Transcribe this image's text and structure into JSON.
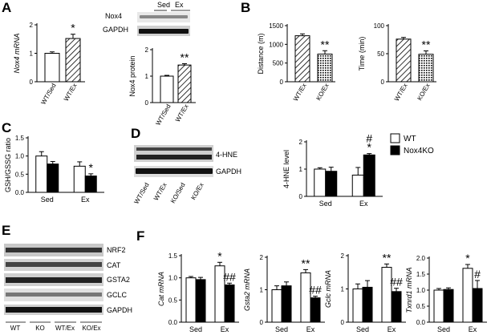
{
  "panel_letters": {
    "A": "A",
    "B": "B",
    "C": "C",
    "D": "D",
    "E": "E",
    "F": "F"
  },
  "legend": {
    "wt": "WT",
    "ko": "Nox4KO"
  },
  "blots": {
    "a_header_sed": "Sed",
    "a_header_ex": "Ex",
    "a_nox4": "Nox4",
    "a_gapdh": "GAPDH",
    "d_hne": "4-HNE",
    "d_gapdh": "GAPDH",
    "d_lanes": [
      "WT/Sed",
      "WT/Ex",
      "KO/Sed",
      "KO/Ex"
    ],
    "e_rows": [
      "NRF2",
      "CAT",
      "GSTA2",
      "GCLC",
      "GAPDH"
    ],
    "e_lanes": [
      "WT",
      "KO",
      "WT/Ex",
      "KO/Ex"
    ]
  },
  "chart_data": [
    {
      "id": "A1",
      "type": "bar",
      "ylabel": "Nox4 mRNA",
      "ylim": [
        0,
        2
      ],
      "yticks": [
        0,
        1,
        2
      ],
      "categories": [
        "WT/Sed",
        "WT/Ex"
      ],
      "values": [
        1.0,
        1.52
      ],
      "errors": [
        0.05,
        0.15
      ],
      "fills": [
        "white",
        "hatch"
      ],
      "annotations": [
        "",
        "*"
      ]
    },
    {
      "id": "A2",
      "type": "bar",
      "ylabel": "Nox4 protein",
      "ylim": [
        0,
        2
      ],
      "yticks": [
        0,
        1,
        2
      ],
      "categories": [
        "WT/Sed",
        "WT/Ex"
      ],
      "values": [
        1.0,
        1.42
      ],
      "errors": [
        0.03,
        0.05
      ],
      "fills": [
        "white",
        "hatch"
      ],
      "annotations": [
        "",
        "**"
      ]
    },
    {
      "id": "B1",
      "type": "bar",
      "ylabel": "Distance (m)",
      "ylim": [
        0,
        1500
      ],
      "yticks": [
        0,
        500,
        1000,
        1500
      ],
      "categories": [
        "WT/Ex",
        "KO/Ex"
      ],
      "values": [
        1230,
        740
      ],
      "errors": [
        50,
        90
      ],
      "fills": [
        "hatch",
        "dots"
      ],
      "annotations": [
        "",
        "**"
      ]
    },
    {
      "id": "B2",
      "type": "bar",
      "ylabel": "Time (min)",
      "ylim": [
        0,
        100
      ],
      "yticks": [
        0,
        50,
        100
      ],
      "categories": [
        "WT/Ex",
        "KO/Ex"
      ],
      "values": [
        76,
        49
      ],
      "errors": [
        3,
        6
      ],
      "fills": [
        "hatch",
        "dots"
      ],
      "annotations": [
        "",
        "**"
      ]
    },
    {
      "id": "C",
      "type": "bar",
      "ylabel": "GSH/GSSG ratio",
      "ylim": [
        0,
        1.5
      ],
      "yticks": [
        0,
        0.5,
        1.0,
        1.5
      ],
      "categories": [
        "Sed",
        "Ex"
      ],
      "series": [
        {
          "name": "WT",
          "values": [
            1.0,
            0.72
          ],
          "errors": [
            0.12,
            0.12
          ],
          "fill": "white",
          "annotations": [
            "",
            ""
          ]
        },
        {
          "name": "Nox4KO",
          "values": [
            0.78,
            0.45
          ],
          "errors": [
            0.07,
            0.06
          ],
          "fill": "black",
          "annotations": [
            "",
            "*"
          ]
        }
      ]
    },
    {
      "id": "D",
      "type": "bar",
      "ylabel": "4-HNE level",
      "ylim": [
        0,
        2
      ],
      "yticks": [
        0,
        1,
        2
      ],
      "categories": [
        "Sed",
        "Ex"
      ],
      "series": [
        {
          "name": "WT",
          "values": [
            1.0,
            0.78
          ],
          "errors": [
            0.05,
            0.28
          ],
          "fill": "white",
          "annotations": [
            "",
            ""
          ]
        },
        {
          "name": "Nox4KO",
          "values": [
            0.92,
            1.52
          ],
          "errors": [
            0.15,
            0.05
          ],
          "fill": "black",
          "annotations": [
            "",
            "# *"
          ]
        }
      ]
    },
    {
      "id": "F1",
      "type": "bar",
      "ylabel": "Cat mRNA",
      "ylim": [
        0,
        1.5
      ],
      "yticks": [
        0,
        0.5,
        1.0,
        1.5
      ],
      "categories": [
        "Sed",
        "Ex"
      ],
      "series": [
        {
          "name": "WT",
          "values": [
            1.0,
            1.27
          ],
          "errors": [
            0.03,
            0.08
          ],
          "fill": "white",
          "annotations": [
            "",
            "*"
          ]
        },
        {
          "name": "Nox4KO",
          "values": [
            0.96,
            0.84
          ],
          "errors": [
            0.05,
            0.04
          ],
          "fill": "black",
          "annotations": [
            "",
            "##"
          ]
        }
      ]
    },
    {
      "id": "F2",
      "type": "bar",
      "ylabel": "Gsta2 mRNA",
      "ylim": [
        0,
        2
      ],
      "yticks": [
        0,
        1,
        2
      ],
      "categories": [
        "Sed",
        "Ex"
      ],
      "series": [
        {
          "name": "WT",
          "values": [
            1.0,
            1.52
          ],
          "errors": [
            0.12,
            0.1
          ],
          "fill": "white",
          "annotations": [
            "",
            "**"
          ]
        },
        {
          "name": "Nox4KO",
          "values": [
            1.12,
            0.75
          ],
          "errors": [
            0.12,
            0.05
          ],
          "fill": "black",
          "annotations": [
            "",
            "##"
          ]
        }
      ]
    },
    {
      "id": "F3",
      "type": "bar",
      "ylabel": "Gclc mRNA",
      "ylim": [
        0,
        2
      ],
      "yticks": [
        0,
        1,
        2
      ],
      "categories": [
        "Sed",
        "Ex"
      ],
      "series": [
        {
          "name": "WT",
          "values": [
            1.0,
            1.65
          ],
          "errors": [
            0.15,
            0.1
          ],
          "fill": "white",
          "annotations": [
            "",
            "**"
          ]
        },
        {
          "name": "Nox4KO",
          "values": [
            1.05,
            0.92
          ],
          "errors": [
            0.2,
            0.1
          ],
          "fill": "black",
          "annotations": [
            "",
            "##"
          ]
        }
      ]
    },
    {
      "id": "F4",
      "type": "bar",
      "ylabel": "Txnrd1 mRNA",
      "ylim": [
        0,
        2.0
      ],
      "yticks": [
        0,
        0.5,
        1.0,
        1.5,
        2.0
      ],
      "categories": [
        "Sed",
        "Ex"
      ],
      "series": [
        {
          "name": "WT",
          "values": [
            1.0,
            1.68
          ],
          "errors": [
            0.05,
            0.12
          ],
          "fill": "white",
          "annotations": [
            "",
            "*"
          ]
        },
        {
          "name": "Nox4KO",
          "values": [
            1.02,
            1.05
          ],
          "errors": [
            0.05,
            0.25
          ],
          "fill": "black",
          "annotations": [
            "",
            "#"
          ]
        }
      ]
    }
  ]
}
